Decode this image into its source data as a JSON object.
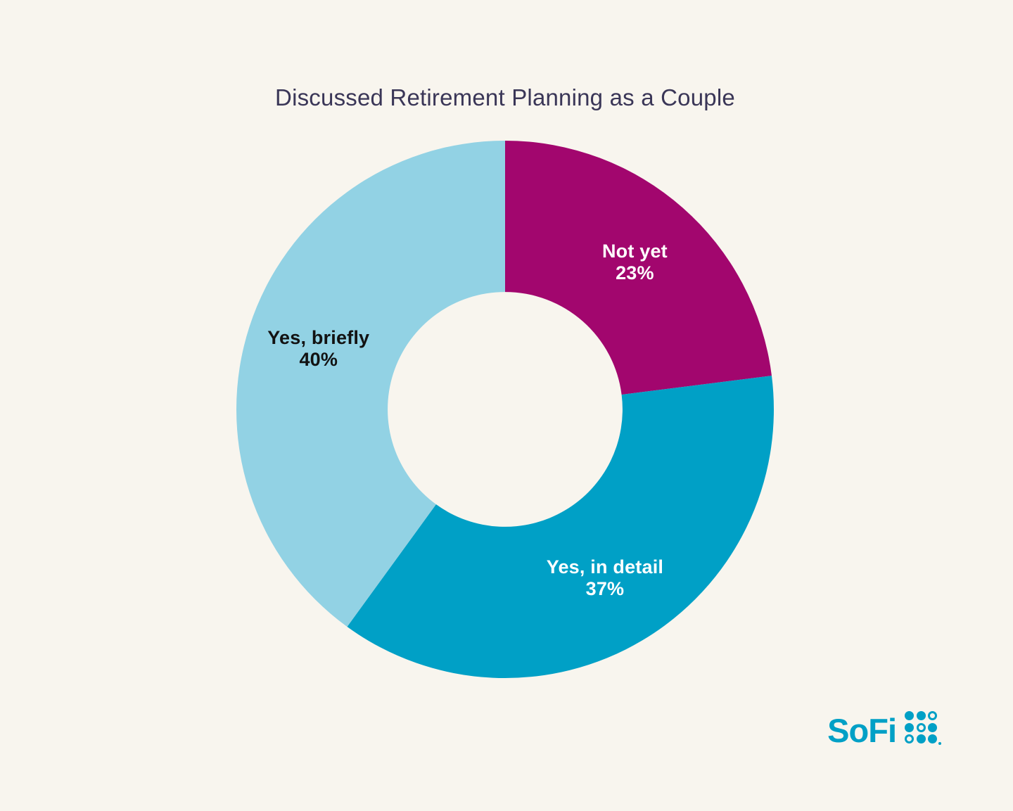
{
  "page": {
    "background_color": "#F8F5EE"
  },
  "chart_data": {
    "type": "pie",
    "variant": "donut",
    "title": "Discussed Retirement Planning as a Couple",
    "title_color": "#3A3657",
    "start_angle_deg": 0,
    "direction": "clockwise",
    "inner_radius_ratio": 0.437,
    "legend": "none",
    "data_labels": "inside",
    "segments": [
      {
        "label": "Not yet",
        "value": 23,
        "pct_label": "23%",
        "color": "#A2066E",
        "text_color": "#FFFFFF"
      },
      {
        "label": "Yes, in detail",
        "value": 37,
        "pct_label": "37%",
        "color": "#00A0C6",
        "text_color": "#FFFFFF"
      },
      {
        "label": "Yes, briefly",
        "value": 40,
        "pct_label": "40%",
        "color": "#92D2E4",
        "text_color": "#121212"
      }
    ]
  },
  "logo": {
    "text": "SoFi",
    "color": "#00A0C6",
    "grid_pattern": [
      [
        "filled",
        "filled",
        "ring"
      ],
      [
        "filled",
        "ring",
        "filled"
      ],
      [
        "ring",
        "filled",
        "filled"
      ]
    ]
  }
}
